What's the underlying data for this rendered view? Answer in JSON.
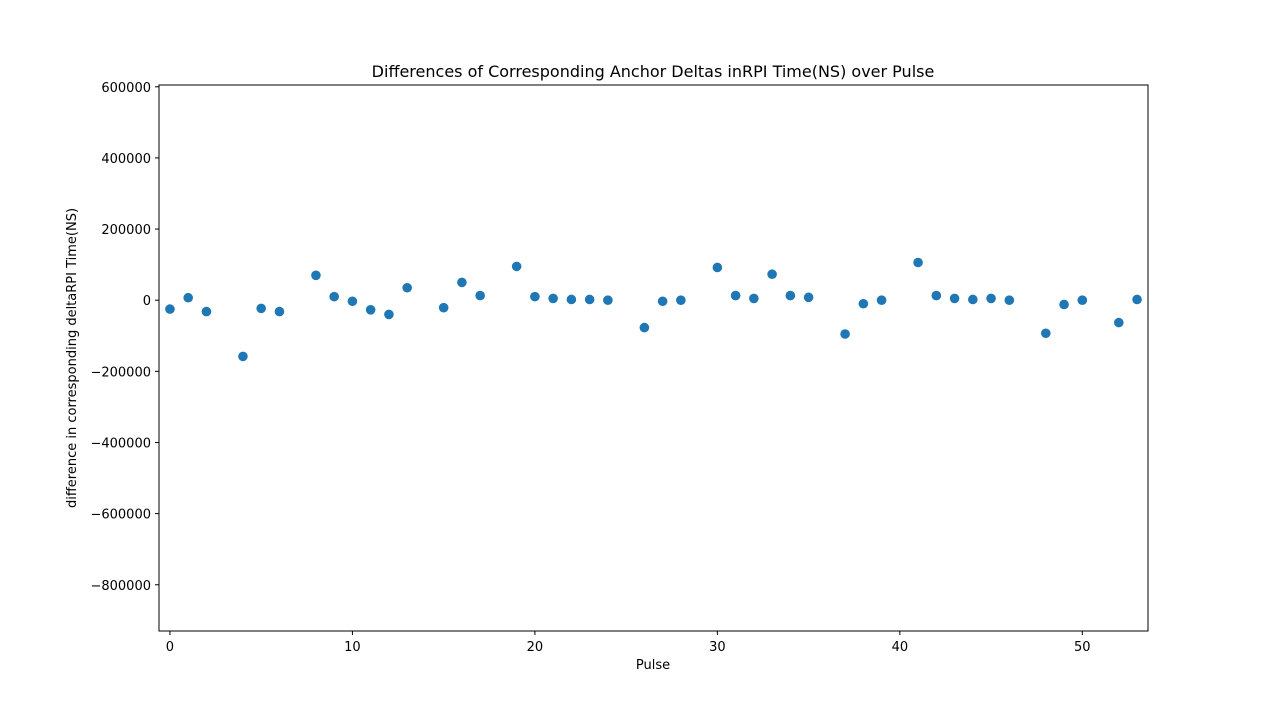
{
  "chart_data": {
    "type": "scatter",
    "title": "Differences of Corresponding Anchor Deltas inRPI Time(NS) over Pulse",
    "xlabel": "Pulse",
    "ylabel": "difference in corresponding deltaRPI Time(NS)",
    "xlim": [
      -0.6,
      53.6
    ],
    "ylim": [
      -930000,
      605000
    ],
    "xticks": [
      0,
      10,
      20,
      30,
      40,
      50
    ],
    "xtick_labels": [
      "0",
      "10",
      "20",
      "30",
      "40",
      "50"
    ],
    "yticks": [
      600000,
      400000,
      200000,
      0,
      -200000,
      -400000,
      -600000,
      -800000
    ],
    "ytick_labels": [
      "600000",
      "400000",
      "200000",
      "0",
      "−200000",
      "−400000",
      "−600000",
      "−800000"
    ],
    "grid": false,
    "marker_color": "#1f77b4",
    "points": [
      {
        "x": 0,
        "y": -25000
      },
      {
        "x": 1,
        "y": 7000
      },
      {
        "x": 2,
        "y": -32000
      },
      {
        "x": 4,
        "y": -158000
      },
      {
        "x": 5,
        "y": -23000
      },
      {
        "x": 6,
        "y": -32000
      },
      {
        "x": 8,
        "y": 70000
      },
      {
        "x": 9,
        "y": 10000
      },
      {
        "x": 10,
        "y": -3000
      },
      {
        "x": 11,
        "y": -27000
      },
      {
        "x": 12,
        "y": -40000
      },
      {
        "x": 13,
        "y": 35000
      },
      {
        "x": 15,
        "y": -21000
      },
      {
        "x": 16,
        "y": 50000
      },
      {
        "x": 17,
        "y": 13000
      },
      {
        "x": 19,
        "y": 95000
      },
      {
        "x": 20,
        "y": 10000
      },
      {
        "x": 21,
        "y": 5000
      },
      {
        "x": 22,
        "y": 2000
      },
      {
        "x": 23,
        "y": 2000
      },
      {
        "x": 24,
        "y": 0
      },
      {
        "x": 26,
        "y": -77000
      },
      {
        "x": 27,
        "y": -3000
      },
      {
        "x": 28,
        "y": 0
      },
      {
        "x": 30,
        "y": 92000
      },
      {
        "x": 31,
        "y": 13000
      },
      {
        "x": 32,
        "y": 5000
      },
      {
        "x": 33,
        "y": 73000
      },
      {
        "x": 34,
        "y": 13000
      },
      {
        "x": 35,
        "y": 8000
      },
      {
        "x": 37,
        "y": -95000
      },
      {
        "x": 38,
        "y": -10000
      },
      {
        "x": 39,
        "y": 0
      },
      {
        "x": 41,
        "y": 106000
      },
      {
        "x": 42,
        "y": 13000
      },
      {
        "x": 43,
        "y": 5000
      },
      {
        "x": 44,
        "y": 2000
      },
      {
        "x": 45,
        "y": 5000
      },
      {
        "x": 46,
        "y": 0
      },
      {
        "x": 48,
        "y": -93000
      },
      {
        "x": 49,
        "y": -12000
      },
      {
        "x": 50,
        "y": 0
      },
      {
        "x": 52,
        "y": -63000
      },
      {
        "x": 53,
        "y": 2000
      }
    ]
  }
}
